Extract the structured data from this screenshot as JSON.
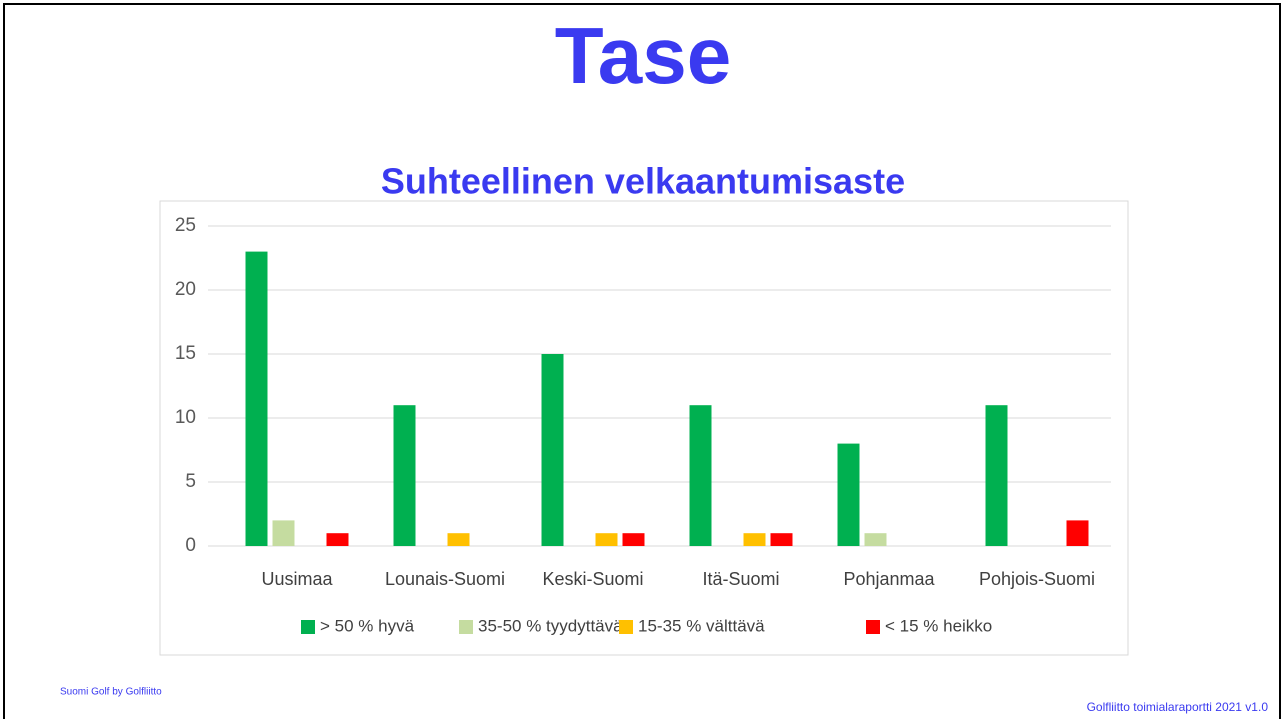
{
  "title": "Tase",
  "footer_left": "Suomi Golf by Golfliitto",
  "footer_right": "Golfliitto toimialaraportti 2021 v1.0",
  "chart_data": {
    "type": "bar",
    "title": "Suhteellinen velkaantumisaste",
    "categories": [
      "Uusimaa",
      "Lounais-Suomi",
      "Keski-Suomi",
      "Itä-Suomi",
      "Pohjanmaa",
      "Pohjois-Suomi"
    ],
    "series": [
      {
        "name": "> 50 % hyvä",
        "color": "#00b050",
        "values": [
          23,
          11,
          15,
          11,
          8,
          11
        ]
      },
      {
        "name": "35-50 % tyydyttävä",
        "color": "#c5dca0",
        "values": [
          2,
          0,
          0,
          0,
          1,
          0
        ]
      },
      {
        "name": "15-35 % välttävä",
        "color": "#ffc000",
        "values": [
          0,
          1,
          1,
          1,
          0,
          0
        ]
      },
      {
        "name": "< 15 % heikko",
        "color": "#ff0000",
        "values": [
          1,
          0,
          1,
          1,
          0,
          2
        ]
      }
    ],
    "ylim": [
      0,
      25
    ],
    "yticks": [
      0,
      5,
      10,
      15,
      20,
      25
    ],
    "grid": true,
    "legend": "bottom"
  }
}
